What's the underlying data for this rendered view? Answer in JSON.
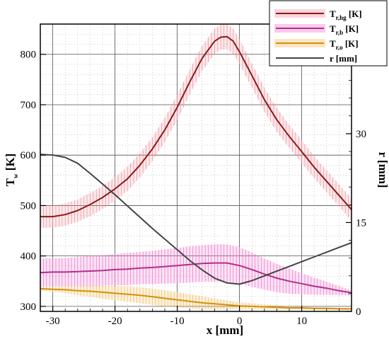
{
  "chart_data": {
    "type": "line",
    "xlabel": "x [mm]",
    "ylabel_left": "T",
    "ylabel_left_sub": "w",
    "ylabel_left_unit": "[K]",
    "ylabel_right": "r [mm]",
    "xlim": [
      -32,
      18
    ],
    "ylim_left": [
      290,
      860
    ],
    "ylim_right": [
      0,
      48.5
    ],
    "x_ticks": [
      -30,
      -20,
      -10,
      0,
      10
    ],
    "y_left_ticks": [
      300,
      400,
      500,
      600,
      700,
      800
    ],
    "y_right_ticks": [
      0,
      15,
      30
    ],
    "grid": true,
    "legend_position": "top-right",
    "colors": {
      "T_hg": "#8b1a1a",
      "T_hg_band": "#f08a98",
      "T_b": "#b0308a",
      "T_b_band": "#f06bc8",
      "T_o": "#d4900a",
      "T_o_band": "#f0b850",
      "r": "#444444"
    },
    "series": [
      {
        "name": "T",
        "sub": "r,hg",
        "unit": "[K]",
        "axis": "left",
        "x": [
          -32,
          -30,
          -28,
          -26,
          -24,
          -22,
          -20,
          -18,
          -16,
          -14,
          -12,
          -10,
          -8,
          -6,
          -4,
          -3,
          -2,
          -1,
          0,
          2,
          4,
          6,
          8,
          10,
          12,
          14,
          16,
          18
        ],
        "y": [
          478,
          478,
          482,
          490,
          502,
          516,
          533,
          553,
          580,
          612,
          650,
          695,
          745,
          792,
          826,
          834,
          835,
          826,
          805,
          758,
          710,
          670,
          637,
          607,
          576,
          548,
          520,
          492
        ],
        "uncertainty": [
          22,
          22,
          22,
          22,
          23,
          23,
          23,
          24,
          24,
          24,
          24,
          25,
          25,
          25,
          25,
          25,
          25,
          25,
          25,
          24,
          24,
          24,
          23,
          23,
          22,
          22,
          22,
          22
        ]
      },
      {
        "name": "T",
        "sub": "r,b",
        "unit": "[K]",
        "axis": "left",
        "x": [
          -32,
          -30,
          -28,
          -26,
          -24,
          -22,
          -20,
          -18,
          -16,
          -14,
          -12,
          -10,
          -8,
          -6,
          -4,
          -2,
          0,
          2,
          4,
          6,
          8,
          10,
          12,
          14,
          16,
          18
        ],
        "y": [
          367,
          368,
          368,
          369,
          370,
          371,
          373,
          374,
          376,
          377,
          379,
          381,
          383,
          385,
          386,
          386,
          381,
          373,
          364,
          356,
          350,
          345,
          340,
          336,
          331,
          327
        ],
        "uncertainty": [
          28,
          28,
          28,
          29,
          30,
          30,
          31,
          32,
          32,
          33,
          34,
          35,
          36,
          36,
          37,
          37,
          36,
          34,
          31,
          28,
          25,
          21,
          17,
          13,
          9,
          5
        ]
      },
      {
        "name": "T",
        "sub": "r,o",
        "unit": "[K]",
        "axis": "left",
        "x": [
          -32,
          -30,
          -28,
          -26,
          -24,
          -22,
          -20,
          -18,
          -16,
          -14,
          -12,
          -10,
          -8,
          -6,
          -4,
          -2,
          0,
          2,
          4,
          6,
          8,
          10,
          12,
          14,
          16,
          18
        ],
        "y": [
          335,
          334,
          333,
          331,
          330,
          328,
          326,
          324,
          322,
          319,
          316,
          313,
          310,
          307,
          305,
          303,
          301,
          300,
          299,
          298,
          297,
          297,
          296,
          296,
          295,
          295
        ],
        "uncertainty": [
          4,
          5,
          7,
          9,
          11,
          13,
          14,
          15,
          16,
          16,
          16,
          15,
          14,
          13,
          11,
          9,
          7,
          6,
          5,
          4,
          3,
          3,
          2,
          2,
          2,
          2
        ]
      },
      {
        "name": "r",
        "unit": "[mm]",
        "axis": "right",
        "x": [
          -32,
          -30,
          -28,
          -26,
          -24,
          -22,
          -20,
          -18,
          -16,
          -14,
          -12,
          -10,
          -8,
          -6,
          -4,
          -2,
          0,
          2,
          4,
          6,
          8,
          10,
          12,
          14,
          16,
          18
        ],
        "y": [
          26.5,
          26.4,
          26.0,
          25.0,
          23.3,
          21.5,
          19.7,
          17.8,
          15.9,
          14.0,
          12.2,
          10.4,
          8.6,
          7.0,
          5.6,
          4.8,
          4.6,
          5.2,
          6.0,
          6.8,
          7.6,
          8.4,
          9.2,
          10.0,
          10.8,
          11.6
        ]
      }
    ]
  }
}
